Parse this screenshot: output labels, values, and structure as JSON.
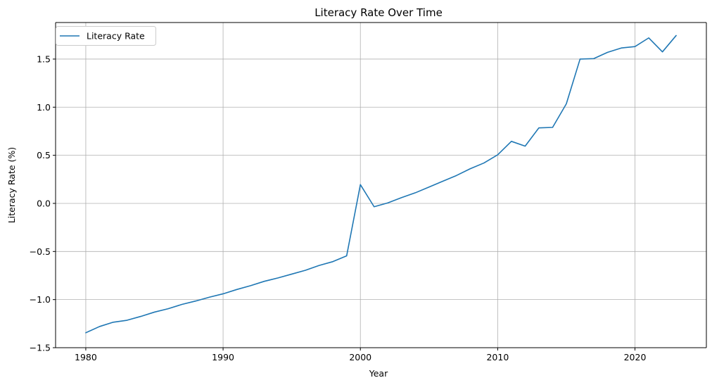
{
  "chart_data": {
    "type": "line",
    "title": "Literacy Rate Over Time",
    "xlabel": "Year",
    "ylabel": "Literacy Rate (%)",
    "xlim": [
      1977.8,
      2025.2
    ],
    "ylim": [
      -1.5,
      1.88
    ],
    "xticks": [
      1980,
      1990,
      2000,
      2010,
      2020
    ],
    "xtick_labels": [
      "1980",
      "1990",
      "2000",
      "2010",
      "2020"
    ],
    "yticks": [
      -1.5,
      -1.0,
      -0.5,
      0.0,
      0.5,
      1.0,
      1.5
    ],
    "ytick_labels": [
      "−1.5",
      "−1.0",
      "−0.5",
      "0.0",
      "0.5",
      "1.0",
      "1.5"
    ],
    "grid": true,
    "legend_position": "top-left",
    "series": [
      {
        "name": "Literacy Rate",
        "color": "#1f77b4",
        "x": [
          1980,
          1981,
          1982,
          1983,
          1984,
          1985,
          1986,
          1987,
          1988,
          1989,
          1990,
          1991,
          1992,
          1993,
          1994,
          1995,
          1996,
          1997,
          1998,
          1999,
          2000,
          2001,
          2002,
          2003,
          2004,
          2005,
          2006,
          2007,
          2008,
          2009,
          2010,
          2011,
          2012,
          2013,
          2014,
          2015,
          2016,
          2017,
          2018,
          2019,
          2020,
          2021,
          2022,
          2023
        ],
        "y": [
          -1.345,
          -1.28,
          -1.235,
          -1.215,
          -1.175,
          -1.13,
          -1.095,
          -1.05,
          -1.015,
          -0.975,
          -0.94,
          -0.895,
          -0.855,
          -0.81,
          -0.775,
          -0.735,
          -0.695,
          -0.645,
          -0.605,
          -0.545,
          0.195,
          -0.035,
          0.005,
          0.06,
          0.11,
          0.17,
          0.23,
          0.29,
          0.36,
          0.42,
          0.505,
          0.645,
          0.595,
          0.785,
          0.79,
          1.035,
          1.5,
          1.505,
          1.57,
          1.615,
          1.63,
          1.72,
          1.575,
          1.745
        ]
      }
    ]
  }
}
